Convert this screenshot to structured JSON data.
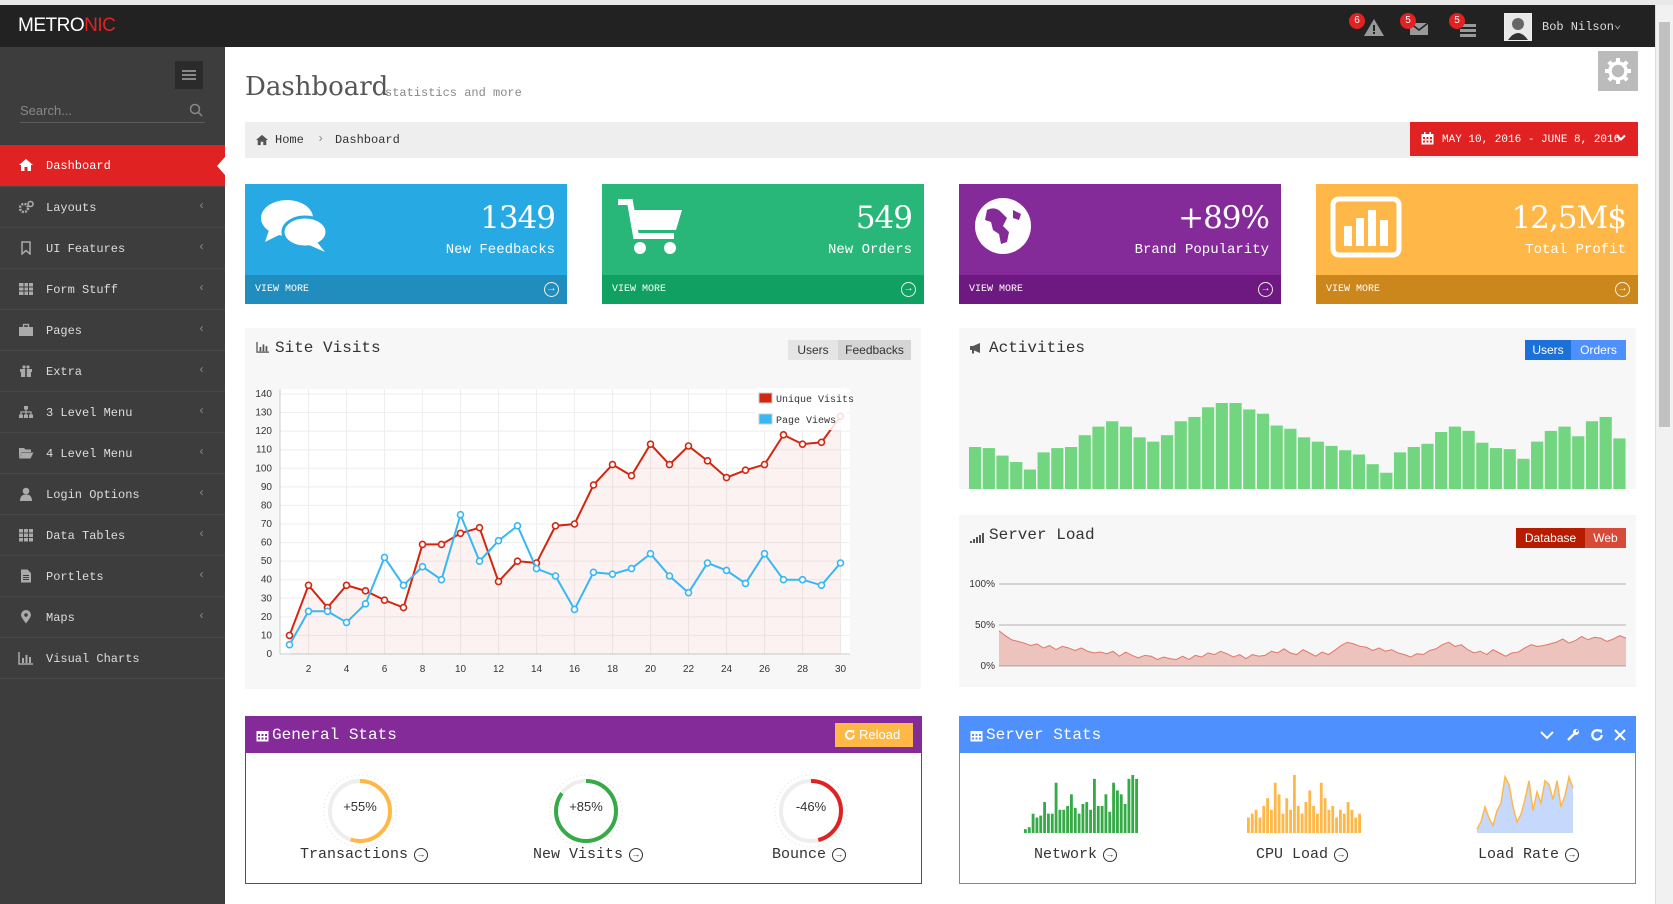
{
  "app": {
    "logo_main": "METRO",
    "logo_accent": "NIC"
  },
  "topbar": {
    "badges": [
      {
        "icon": "warning-icon",
        "count": "6"
      },
      {
        "icon": "envelope-icon",
        "count": "5"
      },
      {
        "icon": "tasks-icon",
        "count": "5"
      }
    ],
    "user_name": "Bob Nilson"
  },
  "sidebar": {
    "search_placeholder": "Search...",
    "items": [
      {
        "label": "Dashboard",
        "icon": "home-icon",
        "active": true
      },
      {
        "label": "Layouts",
        "icon": "cogs-icon"
      },
      {
        "label": "UI Features",
        "icon": "bookmark-icon"
      },
      {
        "label": "Form Stuff",
        "icon": "table-icon"
      },
      {
        "label": "Pages",
        "icon": "briefcase-icon"
      },
      {
        "label": "Extra",
        "icon": "gift-icon"
      },
      {
        "label": "3 Level Menu",
        "icon": "sitemap-icon"
      },
      {
        "label": "4 Level Menu",
        "icon": "folder-open-icon"
      },
      {
        "label": "Login Options",
        "icon": "user-icon"
      },
      {
        "label": "Data Tables",
        "icon": "grid-icon"
      },
      {
        "label": "Portlets",
        "icon": "file-icon"
      },
      {
        "label": "Maps",
        "icon": "map-marker-icon"
      },
      {
        "label": "Visual Charts",
        "icon": "bar-chart-icon"
      }
    ]
  },
  "page": {
    "title": "Dashboard",
    "subtitle": "statistics and more"
  },
  "breadcrumb": {
    "home": "Home",
    "current": "Dashboard"
  },
  "daterange": {
    "label": "MAY 10, 2016 - JUNE 8, 2016"
  },
  "stats": [
    {
      "value": "1349",
      "label": "New Feedbacks",
      "more": "VIEW MORE",
      "color": "#27a9e3",
      "dark": "#208dbe",
      "icon": "comments-icon"
    },
    {
      "value": "549",
      "label": "New Orders",
      "more": "VIEW MORE",
      "color": "#28b779",
      "dark": "#10a062",
      "icon": "shopping-cart-icon"
    },
    {
      "value": "+89%",
      "label": "Brand Popularity",
      "more": "VIEW MORE",
      "color": "#852b99",
      "dark": "#6e1881",
      "icon": "globe-icon"
    },
    {
      "value": "12,5M$",
      "label": "Total Profit",
      "more": "VIEW MORE",
      "color": "#ffb848",
      "dark": "#cb871b",
      "icon": "bar-chart-icon"
    }
  ],
  "site_visits": {
    "title": "Site Visits",
    "tabs": [
      "Users",
      "Feedbacks"
    ],
    "chart_data": {
      "type": "line",
      "x": [
        1,
        2,
        3,
        4,
        5,
        6,
        7,
        8,
        9,
        10,
        11,
        12,
        13,
        14,
        15,
        16,
        17,
        18,
        19,
        20,
        21,
        22,
        23,
        24,
        25,
        26,
        27,
        28,
        29,
        30
      ],
      "series": [
        {
          "name": "Unique Visits",
          "color": "#d12610",
          "values": [
            10,
            37,
            25,
            37,
            34,
            29,
            25,
            59,
            59,
            65,
            68,
            39,
            50,
            49,
            69,
            70,
            91,
            102,
            96,
            113,
            102,
            112,
            104,
            95,
            99,
            102,
            118,
            113,
            114,
            128
          ]
        },
        {
          "name": "Page Views",
          "color": "#37b7f3",
          "values": [
            5,
            23,
            23,
            17,
            27,
            52,
            37,
            47,
            40,
            75,
            50,
            61,
            69,
            46,
            42,
            24,
            44,
            43,
            46,
            54,
            42,
            33,
            49,
            45,
            38,
            54,
            40,
            40,
            37,
            49
          ]
        }
      ],
      "ylim": [
        0,
        140
      ],
      "yticks": [
        0,
        10,
        20,
        30,
        40,
        50,
        60,
        70,
        80,
        90,
        100,
        110,
        120,
        130,
        140
      ],
      "xticks": [
        2,
        4,
        6,
        8,
        10,
        12,
        14,
        16,
        18,
        20,
        22,
        24,
        26,
        28,
        30
      ],
      "legend": "top-right",
      "grid": true
    }
  },
  "activities": {
    "title": "Activities",
    "tabs": [
      "Users",
      "Orders"
    ],
    "chart_data": {
      "type": "bar",
      "color": "#72d680",
      "values": [
        41,
        40,
        33,
        27,
        20,
        36,
        40,
        41,
        52,
        60,
        65,
        60,
        50,
        46,
        52,
        65,
        69,
        78,
        82,
        82,
        76,
        72,
        61,
        58,
        50,
        46,
        42,
        38,
        34,
        25,
        17,
        36,
        41,
        44,
        55,
        60,
        56,
        45,
        40,
        39,
        30,
        46,
        56,
        60,
        51,
        65,
        69,
        49
      ]
    }
  },
  "server_load": {
    "title": "Server Load",
    "tabs": [
      "Database",
      "Web"
    ],
    "chart_data": {
      "type": "area",
      "color": "#d12610",
      "yticks": [
        "100%",
        "50%",
        "0%"
      ],
      "ylim": [
        0,
        100
      ],
      "values": [
        43,
        37,
        32,
        30,
        28,
        25,
        27,
        22,
        25,
        20,
        24,
        22,
        19,
        22,
        18,
        16,
        17,
        15,
        18,
        12,
        17,
        13,
        10,
        13,
        12,
        8,
        11,
        9,
        8,
        12,
        8,
        13,
        11,
        16,
        14,
        18,
        15,
        11,
        14,
        9,
        14,
        12,
        13,
        18,
        16,
        21,
        16,
        14,
        20,
        16,
        12,
        17,
        14,
        19,
        25,
        29,
        27,
        24,
        23,
        19,
        22,
        18,
        20,
        16,
        14,
        11,
        15,
        14,
        19,
        21,
        26,
        29,
        24,
        26,
        20,
        16,
        18,
        14,
        20,
        16,
        12,
        16,
        17,
        22,
        26,
        24,
        25,
        27,
        29,
        33,
        28,
        31,
        36,
        32,
        35,
        34,
        30,
        33,
        37,
        34
      ]
    }
  },
  "general_stats": {
    "title": "General Stats",
    "reload": "Reload",
    "knobs": [
      {
        "label": "Transactions",
        "value": "+55%",
        "pct": 55,
        "color": "#ffb848"
      },
      {
        "label": "New Visits",
        "value": "+85%",
        "pct": 85,
        "color": "#35aa47"
      },
      {
        "label": "Bounce",
        "value": "-46%",
        "pct": 46,
        "color": "#e02222"
      }
    ]
  },
  "server_stats": {
    "title": "Server Stats",
    "sparks": [
      {
        "label": "Network",
        "type": "bar",
        "color": "#35aa47",
        "values": [
          2,
          3,
          10,
          8,
          9,
          16,
          10,
          10,
          26,
          12,
          12,
          14,
          20,
          13,
          10,
          15,
          16,
          12,
          28,
          14,
          14,
          20,
          11,
          26,
          22,
          20,
          15,
          28,
          30,
          28
        ]
      },
      {
        "label": "CPU Load",
        "type": "bar",
        "color": "#ffb848",
        "values": [
          8,
          10,
          12,
          8,
          14,
          18,
          12,
          26,
          20,
          10,
          18,
          12,
          30,
          14,
          10,
          16,
          22,
          14,
          10,
          26,
          18,
          12,
          14,
          8,
          12,
          10,
          16,
          12,
          8,
          10
        ]
      },
      {
        "label": "Load Rate",
        "type": "line",
        "color": "#ffb848",
        "fill": "#c6d9fd",
        "values": [
          2,
          6,
          14,
          8,
          4,
          12,
          16,
          30,
          26,
          14,
          6,
          10,
          18,
          28,
          12,
          22,
          16,
          28,
          26,
          18,
          28,
          14,
          20,
          30,
          24
        ]
      }
    ]
  }
}
